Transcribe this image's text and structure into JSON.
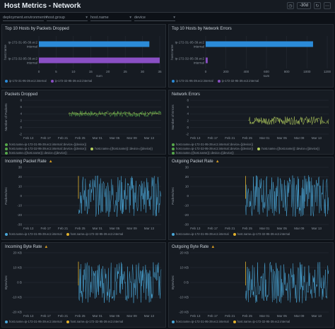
{
  "header": {
    "title": "Host Metrics - Network",
    "time_range": "-30d"
  },
  "filters": [
    {
      "label": "deployment.environment"
    },
    {
      "label": "host.group"
    },
    {
      "label": "host.name"
    },
    {
      "label": "device"
    }
  ],
  "colors": {
    "blue": "#2b8bd8",
    "purple": "#8a4fc4",
    "green": "#56a84a",
    "lightgreen": "#b6d15e",
    "cyan": "#4aa7d8",
    "yellow": "#e0b12e",
    "orange": "#e0733a"
  },
  "panels": {
    "top_dropped": {
      "title": "Top 10 Hosts by Packets Dropped",
      "chart_data": {
        "type": "bar",
        "orientation": "horizontal",
        "categories": [
          "ip-172-31-95-39.ec2.internal",
          "ip-172-32-95-39.ec2.internal"
        ],
        "values": [
          32,
          35
        ],
        "xlabel": "sum",
        "ylabel": "host.name",
        "xlim": [
          0,
          35
        ],
        "xticks": [
          0,
          5,
          10,
          15,
          20,
          25,
          30,
          35
        ],
        "colors": [
          "#2b8bd8",
          "#8a4fc4"
        ]
      },
      "legend": [
        {
          "label": "ip-172-31-95-39.ec2.internal",
          "color": "#2b8bd8"
        },
        {
          "label": "ip-172-32-95-39.ec2.internal",
          "color": "#8a4fc4"
        }
      ]
    },
    "top_errors": {
      "title": "Top 10 Hosts by Network Errors",
      "chart_data": {
        "type": "bar",
        "orientation": "horizontal",
        "categories": [
          "ip-172-31-95-39.ec2.internal",
          "ip-172-32-95-39.ec2.internal"
        ],
        "values": [
          1060,
          20
        ],
        "xlabel": "sum",
        "ylabel": "host.name",
        "xlim": [
          0,
          1200
        ],
        "xticks": [
          0,
          200,
          400,
          600,
          800,
          1000,
          1200
        ],
        "colors": [
          "#2b8bd8",
          "#8a4fc4"
        ]
      },
      "legend": [
        {
          "label": "ip-172-31-95-39.ec2.internal",
          "color": "#2b8bd8"
        },
        {
          "label": "ip-172-32-95-39.ec2.internal",
          "color": "#8a4fc4"
        }
      ]
    },
    "packets_dropped": {
      "title": "Packets Dropped",
      "chart_data": {
        "type": "line",
        "ylabel": "Number of Packets",
        "xticks": [
          "Feb 13",
          "Feb 17",
          "Feb 21",
          "Feb 25",
          "Mar 01",
          "Mar 05",
          "Mar 09",
          "Mar 13"
        ],
        "yticks": [
          8,
          6,
          4,
          2,
          0,
          -2
        ],
        "ylim": [
          -2,
          8
        ],
        "series": [
          {
            "name": "host.name=ip-172-31-95-39.ec2.internal::device={{device}}",
            "color": "#56a84a",
            "start": 0.33,
            "base": 4,
            "amp": 0.9
          },
          {
            "name": "host.name={{host.name}}::device={{device}}",
            "color": "#b6d15e",
            "start": 0.33,
            "base": 4.1,
            "amp": 0.3
          }
        ]
      },
      "legend": [
        {
          "label": "host.name=ip-172-31-95-39.ec2.internal::device={{device}}",
          "color": "#56a84a"
        },
        {
          "label": "host.name=ip-172-32-95-39.ec2.internal::device={{device}}",
          "color": "#56a84a"
        },
        {
          "label": "host.name={{host.name}}::device={{device}}",
          "color": "#b6d15e"
        },
        {
          "label": "host.name={{host.name}}::device={{device}}",
          "color": "#56a84a"
        }
      ]
    },
    "network_errors": {
      "title": "Network Errors",
      "chart_data": {
        "type": "line",
        "ylabel": "Number of Errors",
        "xticks": [
          "Feb 13",
          "Feb 17",
          "Feb 21",
          "Feb 25",
          "Mar 01",
          "Mar 05",
          "Mar 09",
          "Mar 13"
        ],
        "yticks": [
          8,
          6,
          4,
          2,
          0,
          -2
        ],
        "ylim": [
          -2,
          8
        ],
        "series": [
          {
            "name": "host.name=ip-172-31-95-39.ec2.internal::device={{device}}",
            "color": "#b6d15e",
            "start": 0.42,
            "base": 2,
            "amp": 1.2
          }
        ]
      },
      "legend": [
        {
          "label": "host.name=ip-172-31-95-39.ec2.internal::device={{device}}",
          "color": "#56a84a"
        },
        {
          "label": "host.name=ip-172-32-95-39.ec2.internal::device={{device}}",
          "color": "#56a84a"
        },
        {
          "label": "host.name={{host.name}}::device={{device}}",
          "color": "#b6d15e"
        },
        {
          "label": "host.name={{host.name}}::device={{device}}",
          "color": "#56a84a"
        }
      ]
    },
    "incoming_packet": {
      "title": "Incoming Packet Rate",
      "chart_data": {
        "type": "line",
        "ylabel": "Packets/sec",
        "xticks": [
          "Feb 13",
          "Feb 17",
          "Feb 21",
          "Feb 25",
          "Mar 01",
          "Mar 05",
          "Mar 09",
          "Mar 13"
        ],
        "yticks": [
          30,
          20,
          10,
          0,
          -10,
          -20,
          -30
        ],
        "ylim": [
          -30,
          30
        ],
        "series": [
          {
            "name": "host.name=ip-172-31-95-39.ec2.internal",
            "color": "#4aa7d8",
            "start": 0.4,
            "base": 0,
            "amp": 22
          },
          {
            "name": "host.name=ip-172-32-95-39.ec2.internal",
            "color": "#e0b12e",
            "start": 0.4,
            "base": 0,
            "amp": 0
          }
        ]
      },
      "legend": [
        {
          "label": "host.name=ip-172-31-95-39.ec2.internal",
          "color": "#4aa7d8"
        },
        {
          "label": "host.name=ip-172-32-95-39.ec2.internal",
          "color": "#e0b12e"
        }
      ]
    },
    "outgoing_packet": {
      "title": "Outgoing Packet Rate",
      "chart_data": {
        "type": "line",
        "ylabel": "Packets/sec",
        "xticks": [
          "Feb 13",
          "Feb 17",
          "Feb 21",
          "Feb 25",
          "Mar 01",
          "Mar 05",
          "Mar 09",
          "Mar 13"
        ],
        "yticks": [
          30,
          20,
          10,
          0,
          -10,
          -20,
          -30
        ],
        "ylim": [
          -30,
          30
        ],
        "series": [
          {
            "name": "host.name=ip-172-31-95-39.ec2.internal",
            "color": "#4aa7d8",
            "start": 0.4,
            "base": 0,
            "amp": 22
          },
          {
            "name": "host.name=ip-172-32-95-39.ec2.internal",
            "color": "#e0b12e",
            "start": 0.4,
            "base": 0,
            "amp": 0
          }
        ]
      },
      "legend": [
        {
          "label": "host.name=ip-172-31-95-39.ec2.internal",
          "color": "#4aa7d8"
        },
        {
          "label": "host.name=ip-172-32-95-39.ec2.internal",
          "color": "#e0b12e"
        }
      ]
    },
    "incoming_byte": {
      "title": "Incoming Byte Rate",
      "chart_data": {
        "type": "line",
        "ylabel": "Bytes/sec",
        "xticks": [
          "Feb 13",
          "Feb 17",
          "Feb 21",
          "Feb 25",
          "Mar 01",
          "Mar 05",
          "Mar 09",
          "Mar 13"
        ],
        "yticks": [
          "20 KB",
          "10 KB",
          "0 B",
          "-10 KB",
          "-20 KB"
        ],
        "ylim": [
          -20,
          20
        ],
        "series": [
          {
            "name": "host.name=ip-172-31-95-39.ec2.internal",
            "color": "#4aa7d8",
            "start": 0.4,
            "base": 0,
            "amp": 14
          },
          {
            "name": "host.name=ip-172-32-95-39.ec2.internal",
            "color": "#e0b12e",
            "start": 0.4,
            "base": 0,
            "amp": 0
          }
        ]
      },
      "legend": [
        {
          "label": "host.name=ip-172-31-95-39.ec2.internal",
          "color": "#4aa7d8"
        },
        {
          "label": "host.name=ip-172-32-95-39.ec2.internal",
          "color": "#e0b12e"
        }
      ]
    },
    "outgoing_byte": {
      "title": "Outgoing Byte Rate",
      "chart_data": {
        "type": "line",
        "ylabel": "Bytes/sec",
        "xticks": [
          "Feb 13",
          "Feb 17",
          "Feb 21",
          "Feb 25",
          "Mar 01",
          "Mar 05",
          "Mar 09",
          "Mar 13"
        ],
        "yticks": [
          "20 KB",
          "10 KB",
          "0 B",
          "-10 KB",
          "-20 KB"
        ],
        "ylim": [
          -20,
          20
        ],
        "series": [
          {
            "name": "host.name=ip-172-31-95-39.ec2.internal",
            "color": "#4aa7d8",
            "start": 0.4,
            "base": 0,
            "amp": 14
          },
          {
            "name": "host.name=ip-172-32-95-39.ec2.internal",
            "color": "#e0b12e",
            "start": 0.4,
            "base": 0,
            "amp": 0
          }
        ]
      },
      "legend": [
        {
          "label": "host.name=ip-172-31-95-39.ec2.internal",
          "color": "#4aa7d8"
        },
        {
          "label": "host.name=ip-172-32-95-39.ec2.internal",
          "color": "#e0b12e"
        }
      ]
    }
  }
}
